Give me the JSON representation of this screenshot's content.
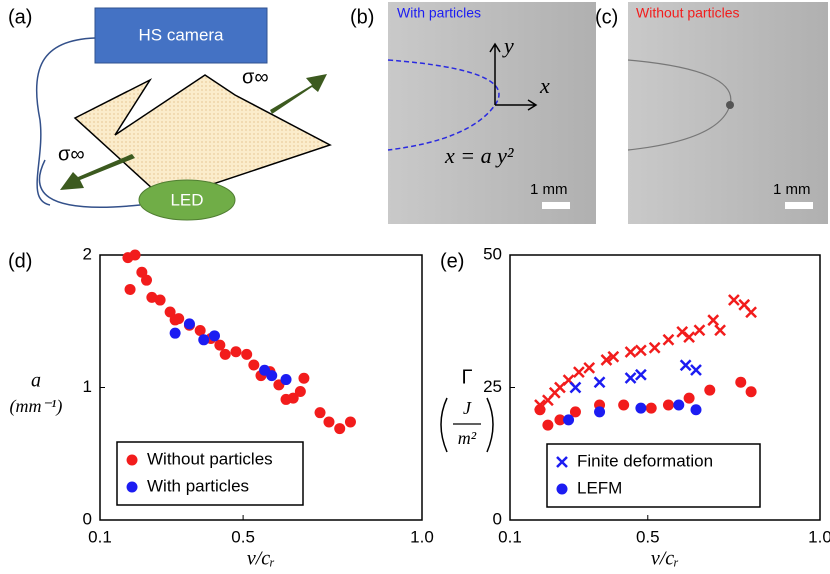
{
  "diagram": {
    "panel": "(a)",
    "camera": "HS camera",
    "stress_top": "σ∞",
    "stress_left": "σ∞",
    "led": "LED"
  },
  "images": [
    {
      "panel": "(b)",
      "caption": "With particles",
      "y_axis": "y",
      "x_axis": "x",
      "equation": "x = a y²",
      "scale_bar": "1 mm"
    },
    {
      "panel": "(c)",
      "caption": "Without particles",
      "scale_bar": "1 mm"
    }
  ],
  "chart_data": [
    {
      "type": "scatter",
      "panel": "(d)",
      "xlabel": "v/cᵣ",
      "ylabel": [
        "a",
        "(mm⁻¹)"
      ],
      "xlim": [
        0.1,
        1.0
      ],
      "xticks": [
        0.1,
        0.5,
        {
          "value": 1.0,
          "label": "1.0"
        }
      ],
      "ylim": [
        0,
        2
      ],
      "yticks": [
        0,
        1,
        2
      ],
      "series": [
        {
          "name": "Without particles",
          "color": "#f21c1c",
          "marker": "o",
          "x": [
            0.178,
            0.198,
            0.184,
            0.217,
            0.23,
            0.245,
            0.268,
            0.296,
            0.31,
            0.32,
            0.35,
            0.38,
            0.41,
            0.435,
            0.45,
            0.48,
            0.51,
            0.53,
            0.55,
            0.575,
            0.6,
            0.62,
            0.64,
            0.66,
            0.67,
            0.715,
            0.74,
            0.77,
            0.8
          ],
          "values": [
            1.98,
            2.0,
            1.74,
            1.87,
            1.81,
            1.68,
            1.66,
            1.57,
            1.51,
            1.52,
            1.47,
            1.43,
            1.37,
            1.32,
            1.25,
            1.27,
            1.25,
            1.17,
            1.09,
            1.12,
            1.02,
            0.91,
            0.92,
            0.97,
            1.07,
            0.81,
            0.74,
            0.69,
            0.74
          ]
        },
        {
          "name": "With particles",
          "color": "#1c1cf2",
          "marker": "o",
          "x": [
            0.31,
            0.35,
            0.39,
            0.42,
            0.56,
            0.58,
            0.62
          ],
          "values": [
            1.41,
            1.48,
            1.36,
            1.39,
            1.13,
            1.09,
            1.06
          ]
        }
      ]
    },
    {
      "type": "scatter",
      "panel": "(e)",
      "xlabel": "v/cᵣ",
      "ylabel": [
        "Γ",
        "J",
        "m²"
      ],
      "xlim": [
        0.1,
        1.0
      ],
      "xticks": [
        0.1,
        0.5,
        {
          "value": 1.0,
          "label": "1.0"
        }
      ],
      "ylim": [
        0,
        50
      ],
      "yticks": [
        0,
        25,
        50
      ],
      "legend": [
        {
          "label": "Finite deformation",
          "marker": "x",
          "color": "#1c1cf2"
        },
        {
          "label": "LEFM",
          "marker": "o",
          "color": "#1c1cf2"
        }
      ],
      "series": [
        {
          "color": "#f21c1c",
          "marker": "x",
          "x": [
            0.187,
            0.21,
            0.23,
            0.245,
            0.27,
            0.3,
            0.33,
            0.38,
            0.4,
            0.45,
            0.48,
            0.52,
            0.56,
            0.6,
            0.62,
            0.65,
            0.69,
            0.71,
            0.75,
            0.78,
            0.8
          ],
          "values": [
            21.7,
            22.6,
            24,
            25,
            26.4,
            27.9,
            28.7,
            30.2,
            30.8,
            31.7,
            32,
            32.5,
            34,
            35.5,
            34.5,
            35.8,
            37.7,
            35.8,
            41.5,
            40.6,
            39.2
          ]
        },
        {
          "color": "#1c1cf2",
          "marker": "x",
          "x": [
            0.29,
            0.36,
            0.45,
            0.48,
            0.61,
            0.64
          ],
          "values": [
            25,
            26,
            26.8,
            27.4,
            29.2,
            28.3
          ]
        },
        {
          "color": "#f21c1c",
          "marker": "o",
          "x": [
            0.187,
            0.21,
            0.245,
            0.29,
            0.36,
            0.43,
            0.51,
            0.56,
            0.62,
            0.68,
            0.77,
            0.8
          ],
          "values": [
            20.8,
            17.9,
            18.9,
            20.4,
            21.7,
            21.7,
            21.1,
            21.7,
            23,
            24.5,
            26,
            24.2
          ]
        },
        {
          "color": "#1c1cf2",
          "marker": "o",
          "x": [
            0.27,
            0.36,
            0.48,
            0.59,
            0.64
          ],
          "values": [
            18.9,
            20.4,
            21.1,
            21.7,
            20.8
          ]
        }
      ]
    }
  ]
}
